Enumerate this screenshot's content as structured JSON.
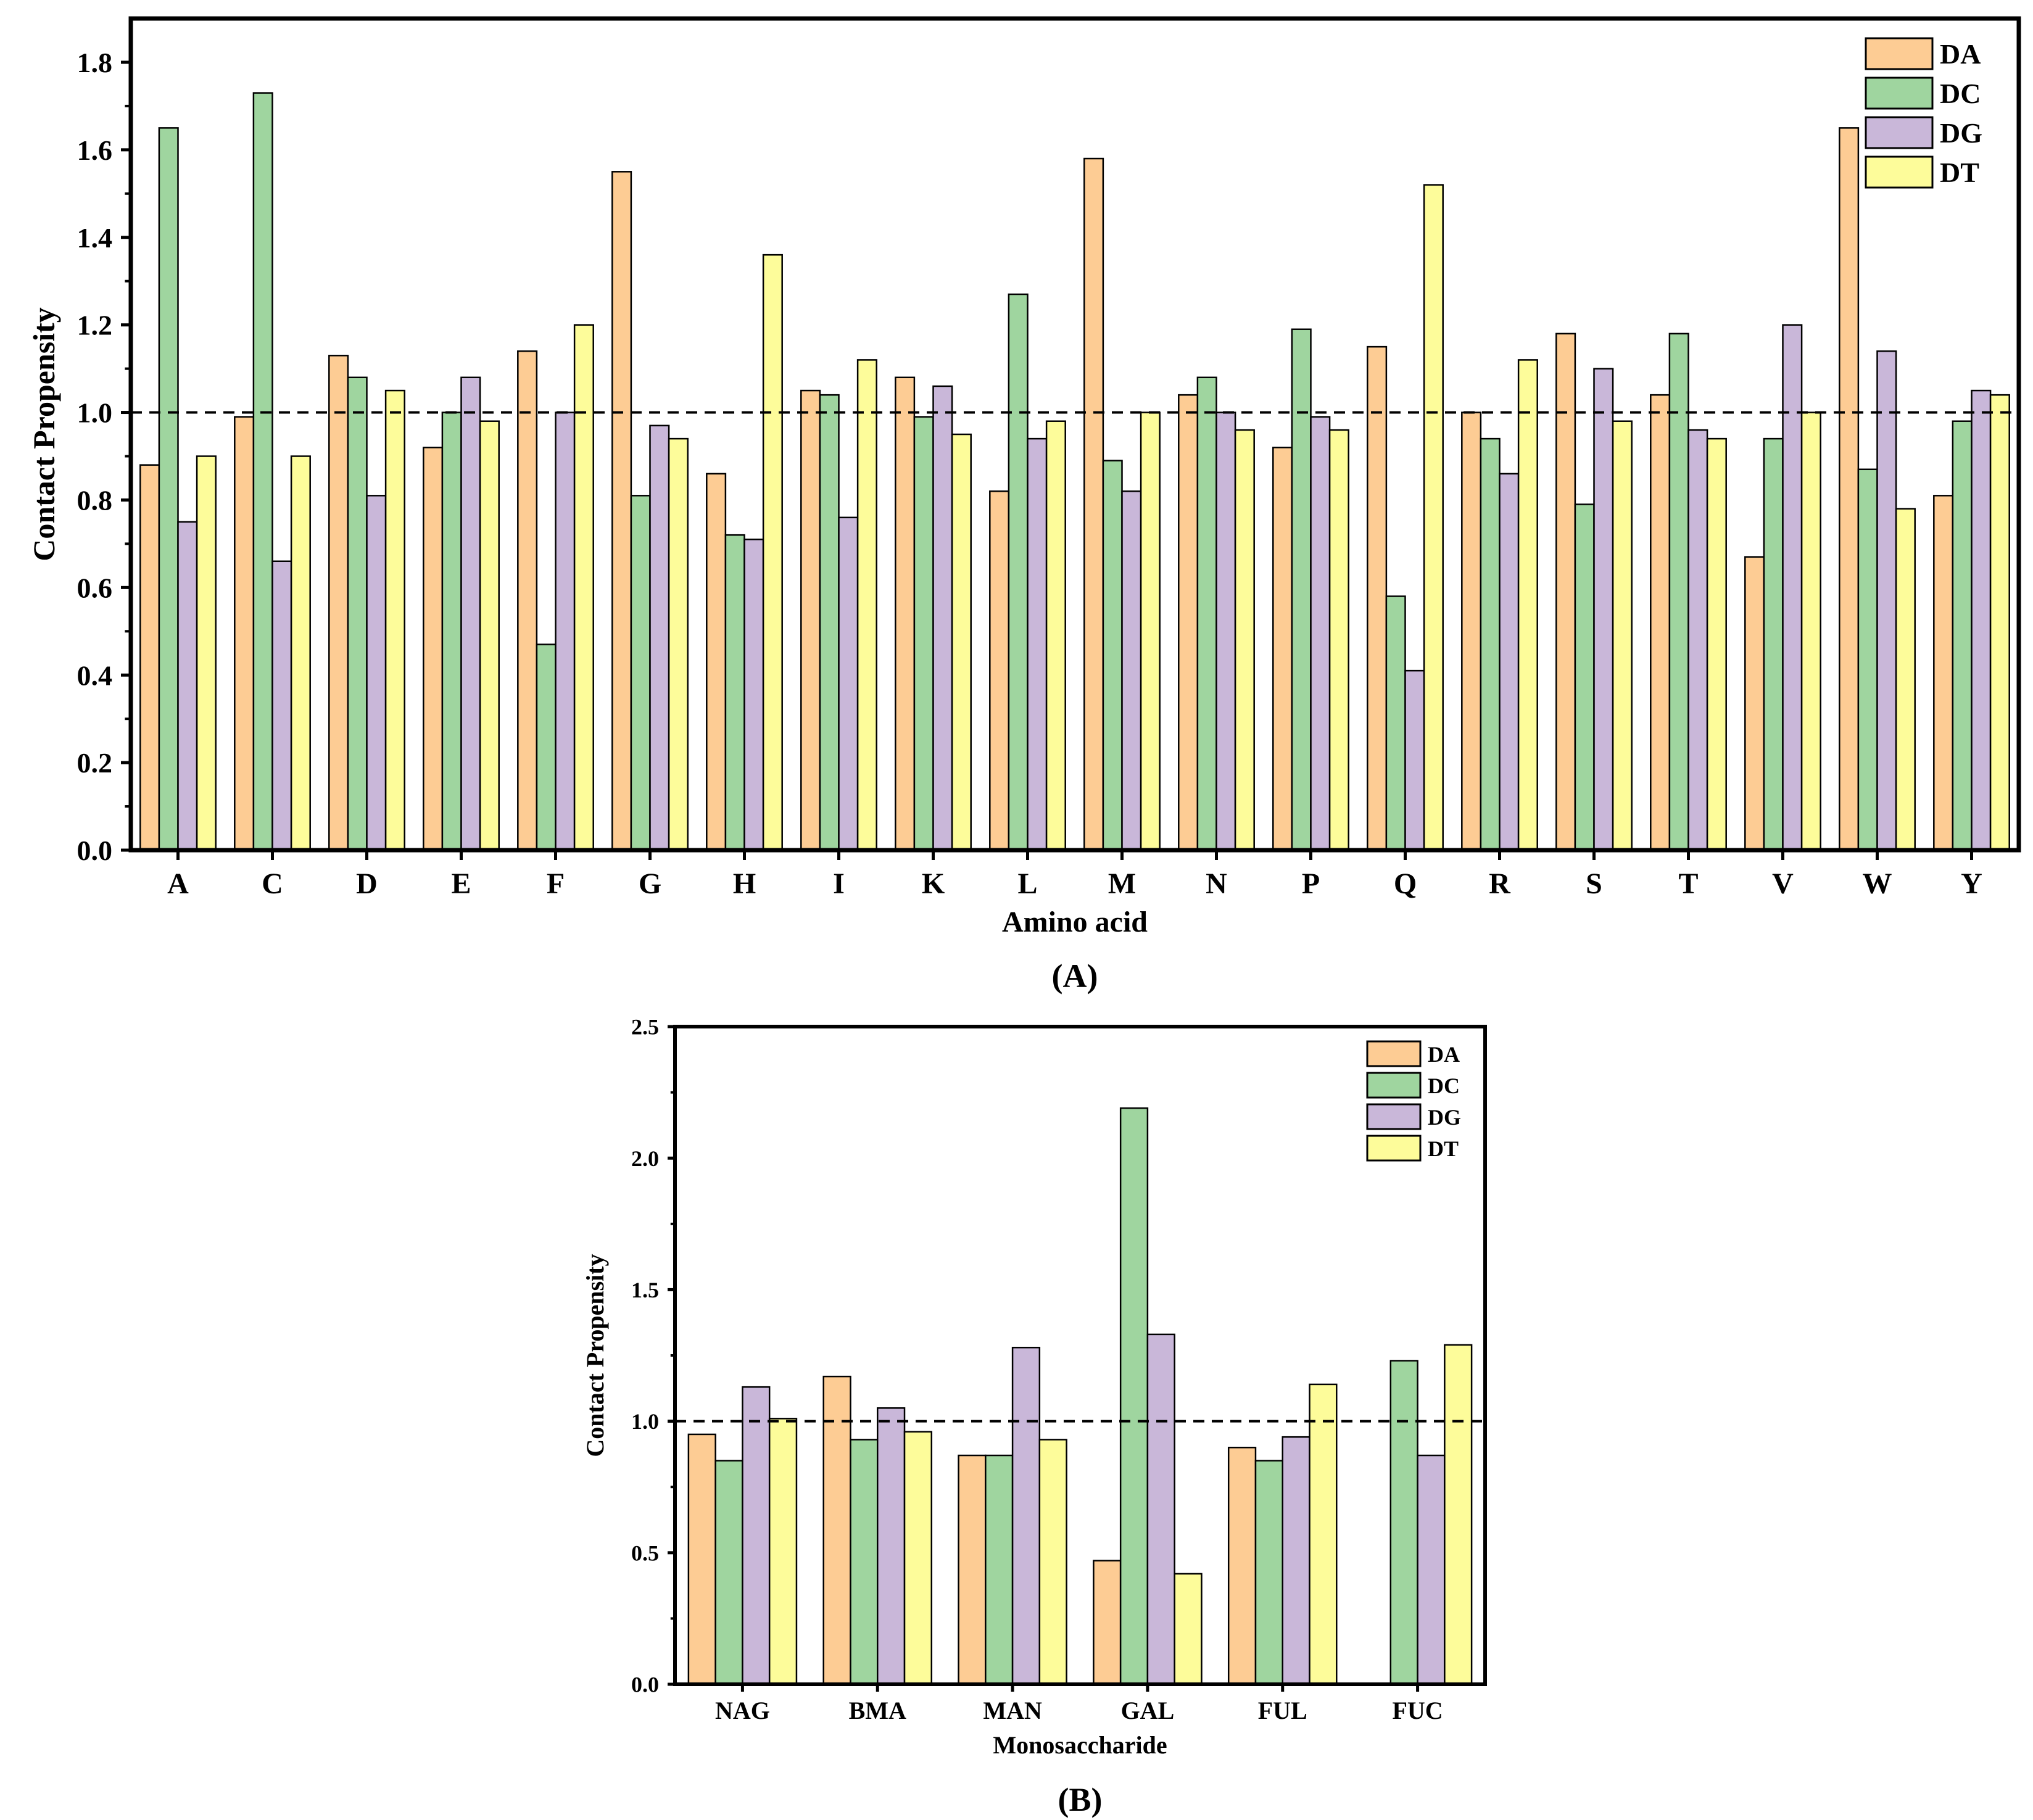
{
  "colors": {
    "DA": "#fdcc94",
    "DC": "#9fd59f",
    "DG": "#c9b7d9",
    "DT": "#fdfc9a"
  },
  "chart_data": [
    {
      "type": "bar",
      "panel_label": "(A)",
      "xlabel": "Amino acid",
      "ylabel": "Contact Propensity",
      "ylim": [
        0,
        1.9
      ],
      "yticks": [
        0.0,
        0.2,
        0.4,
        0.6,
        0.8,
        1.0,
        1.2,
        1.4,
        1.6,
        1.8
      ],
      "ytick_labels": [
        "0.0",
        "0.2",
        "0.4",
        "0.6",
        "0.8",
        "1.0",
        "1.2",
        "1.4",
        "1.6",
        "1.8"
      ],
      "reference_line": 1.0,
      "legend_position": "top-right",
      "categories": [
        "A",
        "C",
        "D",
        "E",
        "F",
        "G",
        "H",
        "I",
        "K",
        "L",
        "M",
        "N",
        "P",
        "Q",
        "R",
        "S",
        "T",
        "V",
        "W",
        "Y"
      ],
      "series": [
        {
          "name": "DA",
          "values": [
            0.88,
            0.99,
            1.13,
            0.92,
            1.14,
            1.55,
            0.86,
            1.05,
            1.08,
            0.82,
            1.58,
            1.04,
            0.92,
            1.15,
            1.0,
            1.18,
            1.04,
            0.67,
            1.65,
            0.81
          ]
        },
        {
          "name": "DC",
          "values": [
            1.65,
            1.73,
            1.08,
            1.0,
            0.47,
            0.81,
            0.72,
            1.04,
            0.99,
            1.27,
            0.89,
            1.08,
            1.19,
            0.58,
            0.94,
            0.79,
            1.18,
            0.94,
            0.87,
            0.98
          ]
        },
        {
          "name": "DG",
          "values": [
            0.75,
            0.66,
            0.81,
            1.08,
            1.0,
            0.97,
            0.71,
            0.76,
            1.06,
            0.94,
            0.82,
            1.0,
            0.99,
            0.41,
            0.86,
            1.1,
            0.96,
            1.2,
            1.14,
            1.05
          ]
        },
        {
          "name": "DT",
          "values": [
            0.9,
            0.9,
            1.05,
            0.98,
            1.2,
            0.94,
            1.36,
            1.12,
            0.95,
            0.98,
            1.0,
            0.96,
            0.96,
            1.52,
            1.12,
            0.98,
            0.94,
            1.0,
            0.78,
            1.04
          ]
        }
      ]
    },
    {
      "type": "bar",
      "panel_label": "(B)",
      "xlabel": "Monosaccharide",
      "ylabel": "Contact Propensity",
      "ylim": [
        0,
        2.5
      ],
      "yticks": [
        0.0,
        0.5,
        1.0,
        1.5,
        2.0,
        2.5
      ],
      "ytick_labels": [
        "0.0",
        "0.5",
        "1.0",
        "1.5",
        "2.0",
        "2.5"
      ],
      "reference_line": 1.0,
      "legend_position": "top-right",
      "categories": [
        "NAG",
        "BMA",
        "MAN",
        "GAL",
        "FUL",
        "FUC"
      ],
      "series": [
        {
          "name": "DA",
          "values": [
            0.95,
            1.17,
            0.87,
            0.47,
            0.9,
            0
          ]
        },
        {
          "name": "DC",
          "values": [
            0.85,
            0.93,
            0.87,
            2.19,
            0.85,
            1.23
          ]
        },
        {
          "name": "DG",
          "values": [
            1.13,
            1.05,
            1.28,
            1.33,
            0.94,
            0.87
          ]
        },
        {
          "name": "DT",
          "values": [
            1.01,
            0.96,
            0.93,
            0.42,
            1.14,
            1.29
          ]
        }
      ]
    }
  ]
}
